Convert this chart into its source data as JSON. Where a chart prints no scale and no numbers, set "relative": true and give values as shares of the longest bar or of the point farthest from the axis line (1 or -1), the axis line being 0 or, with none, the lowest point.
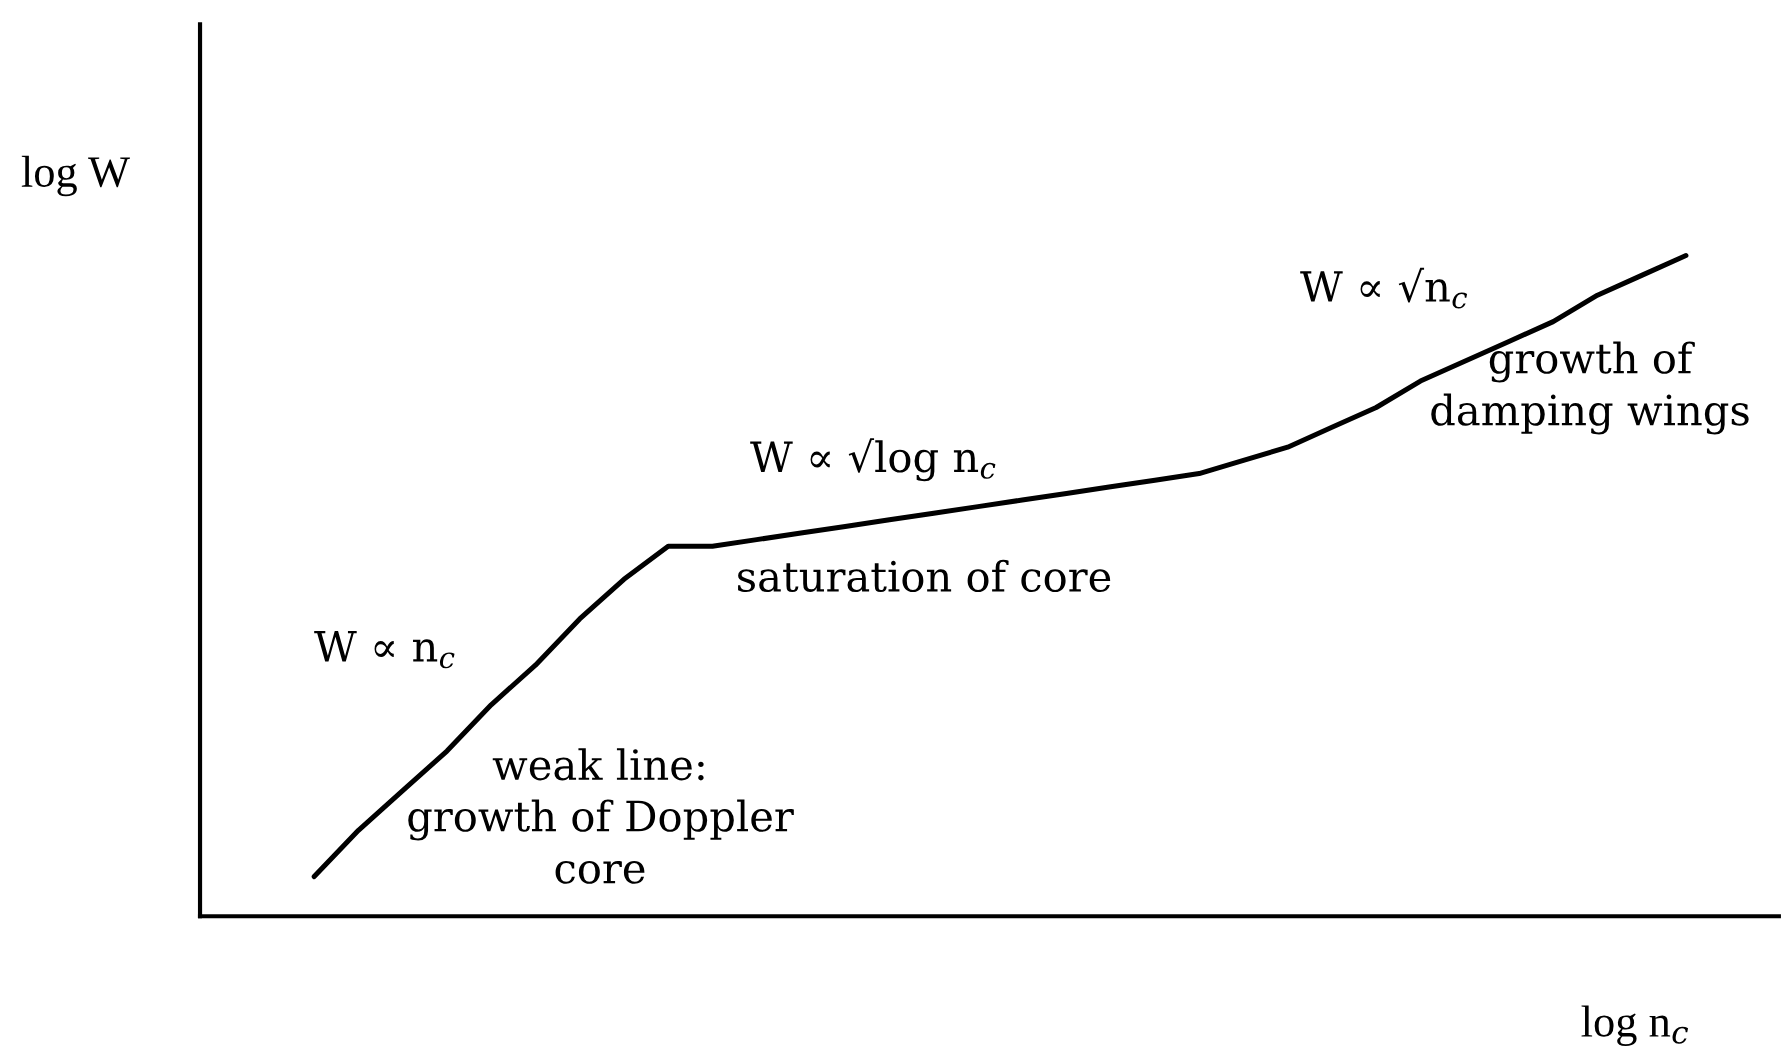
{
  "chart_data": {
    "type": "line",
    "relative": true,
    "xlabel": "log n$_{c}$",
    "ylabel": "log W",
    "color": "#000000",
    "categories": [
      null,
      null,
      null,
      null,
      null,
      null,
      null,
      null,
      null,
      null,
      null,
      null,
      null,
      null,
      null,
      null,
      null,
      null,
      null,
      null,
      null,
      null,
      null,
      null,
      null,
      null,
      null,
      null,
      null,
      null,
      null,
      null
    ],
    "values": [
      0.06,
      0.13,
      0.19,
      0.25,
      0.32,
      0.38,
      0.45,
      0.51,
      0.56,
      0.56,
      0.57,
      0.58,
      0.59,
      0.6,
      0.61,
      0.62,
      0.63,
      0.64,
      0.65,
      0.66,
      0.67,
      0.69,
      0.71,
      0.74,
      0.77,
      0.81,
      0.84,
      0.87,
      0.9,
      0.94,
      0.97,
      1
    ],
    "annotations": [
      "W ∝ n$_{c}$",
      "weak line:\ngrowth of Doppler\ncore",
      "W ∝ √log n$_{c}$",
      "saturation of core",
      "W ∝ √n$_{c}$",
      "growth of\ndamping wings"
    ],
    "legend": false
  }
}
